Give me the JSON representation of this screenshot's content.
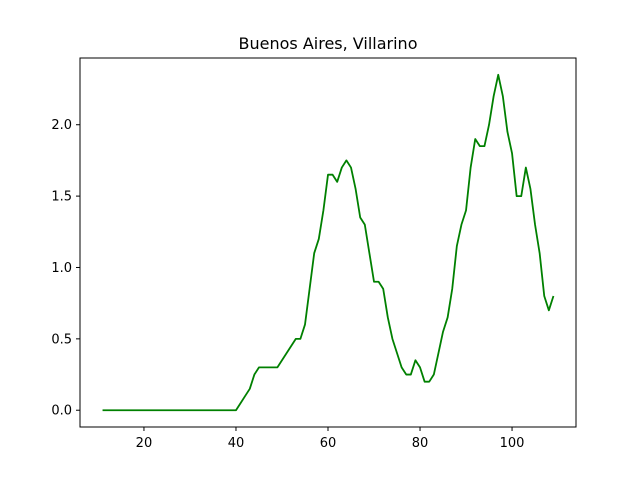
{
  "chart_data": {
    "type": "line",
    "title": "Buenos Aires, Villarino",
    "xlabel": "",
    "ylabel": "",
    "xlim": [
      6.1,
      113.9
    ],
    "ylim": [
      -0.1175,
      2.4675
    ],
    "xticks": [
      20,
      40,
      60,
      80,
      100
    ],
    "xtick_labels": [
      "20",
      "40",
      "60",
      "80",
      "100"
    ],
    "yticks": [
      0.0,
      0.5,
      1.0,
      1.5,
      2.0
    ],
    "ytick_labels": [
      "0.0",
      "0.5",
      "1.0",
      "1.5",
      "2.0"
    ],
    "grid": false,
    "legend": "none",
    "line_color": "#008000",
    "series": [
      {
        "x": [
          11,
          12,
          13,
          14,
          15,
          16,
          17,
          18,
          19,
          20,
          21,
          22,
          23,
          24,
          25,
          26,
          27,
          28,
          29,
          30,
          31,
          32,
          33,
          34,
          35,
          36,
          37,
          38,
          39,
          40,
          41,
          42,
          43,
          44,
          45,
          46,
          47,
          48,
          49,
          50,
          51,
          52,
          53,
          54,
          55,
          56,
          57,
          58,
          59,
          60,
          61,
          62,
          63,
          64,
          65,
          66,
          67,
          68,
          69,
          70,
          71,
          72,
          73,
          74,
          75,
          76,
          77,
          78,
          79,
          80,
          81,
          82,
          83,
          84,
          85,
          86,
          87,
          88,
          89,
          90,
          91,
          92,
          93,
          94,
          95,
          96,
          97,
          98,
          99,
          100,
          101,
          102,
          103,
          104,
          105,
          106,
          107,
          108,
          109
        ],
        "y": [
          0,
          0,
          0,
          0,
          0,
          0,
          0,
          0,
          0,
          0,
          0,
          0,
          0,
          0,
          0,
          0,
          0,
          0,
          0,
          0,
          0,
          0,
          0,
          0,
          0,
          0,
          0,
          0,
          0,
          0,
          0.05,
          0.1,
          0.15,
          0.25,
          0.3,
          0.3,
          0.3,
          0.3,
          0.3,
          0.35,
          0.4,
          0.45,
          0.5,
          0.5,
          0.6,
          0.85,
          1.1,
          1.2,
          1.4,
          1.65,
          1.65,
          1.6,
          1.7,
          1.75,
          1.7,
          1.55,
          1.35,
          1.3,
          1.1,
          0.9,
          0.9,
          0.85,
          0.65,
          0.5,
          0.4,
          0.3,
          0.25,
          0.25,
          0.35,
          0.3,
          0.2,
          0.2,
          0.25,
          0.4,
          0.55,
          0.65,
          0.85,
          1.15,
          1.3,
          1.4,
          1.7,
          1.9,
          1.85,
          1.85,
          2.0,
          2.2,
          2.35,
          2.2,
          1.95,
          1.8,
          1.5,
          1.5,
          1.7,
          1.55,
          1.3,
          1.1,
          0.8,
          0.7,
          0.8
        ]
      }
    ]
  }
}
